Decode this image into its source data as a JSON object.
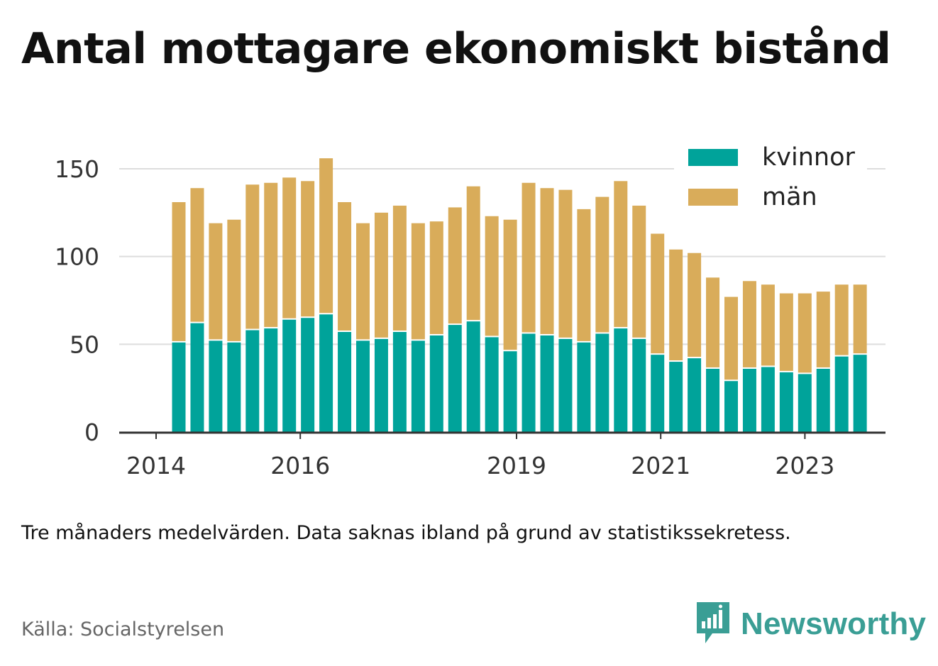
{
  "title": "Antal mottagare ekonomiskt bistånd",
  "note": "Tre månaders medelvärden. Data saknas ibland på grund av statistikssekretess.",
  "source": "Källa: Socialstyrelsen",
  "brand": {
    "name": "Newsworthy",
    "icon": "newsworthy-logo-icon",
    "color": "#3a9e95"
  },
  "colors": {
    "kvinnor": "#00a39a",
    "man": "#d9ac5a",
    "grid": "#dddddd",
    "axis": "#333333"
  },
  "legend": [
    {
      "label": "kvinnor",
      "color": "#00a39a"
    },
    {
      "label": "män",
      "color": "#d9ac5a"
    }
  ],
  "chart_data": {
    "type": "bar",
    "stacked": true,
    "title": "Antal mottagare ekonomiskt bistånd",
    "xlabel": "",
    "ylabel": "",
    "ylim": [
      0,
      160
    ],
    "yticks": [
      0,
      50,
      100,
      150
    ],
    "x_start_year": 2014,
    "x_end_year": 2024.4,
    "x_tick_labels": [
      "2014",
      "2016",
      "2019",
      "2021",
      "2023"
    ],
    "grid": true,
    "legend_position": "top-right",
    "categories": [
      "2014-Q2",
      "2014-Q3",
      "2014-Q4",
      "2015-Q1",
      "2015-Q2",
      "2015-Q3",
      "2015-Q4",
      "2016-Q1",
      "2016-Q2",
      "2016-Q3",
      "2016-Q4",
      "2017-Q1",
      "2017-Q2",
      "2017-Q3",
      "2017-Q4",
      "2018-Q1",
      "2018-Q2",
      "2018-Q3",
      "2018-Q4",
      "2019-Q1",
      "2019-Q2",
      "2019-Q3",
      "2019-Q4",
      "2020-Q1",
      "2020-Q2",
      "2020-Q3",
      "2020-Q4",
      "2021-Q1",
      "2021-Q2",
      "2021-Q3",
      "2021-Q4",
      "2022-Q1",
      "2022-Q2",
      "2022-Q3",
      "2022-Q4",
      "2023-Q1",
      "2023-Q2",
      "2023-Q3"
    ],
    "series": [
      {
        "name": "kvinnor",
        "color": "#00a39a",
        "values": [
          51,
          62,
          52,
          51,
          58,
          59,
          64,
          65,
          67,
          57,
          52,
          53,
          57,
          52,
          55,
          61,
          63,
          54,
          46,
          56,
          55,
          53,
          51,
          56,
          59,
          53,
          44,
          40,
          42,
          36,
          29,
          36,
          37,
          34,
          33,
          36,
          43,
          44
        ]
      },
      {
        "name": "män",
        "color": "#d9ac5a",
        "values": [
          80,
          77,
          67,
          70,
          83,
          83,
          81,
          78,
          89,
          74,
          67,
          72,
          72,
          67,
          65,
          67,
          77,
          69,
          75,
          86,
          84,
          85,
          76,
          78,
          84,
          76,
          69,
          64,
          60,
          52,
          48,
          50,
          47,
          45,
          46,
          44,
          41,
          40
        ]
      }
    ]
  }
}
